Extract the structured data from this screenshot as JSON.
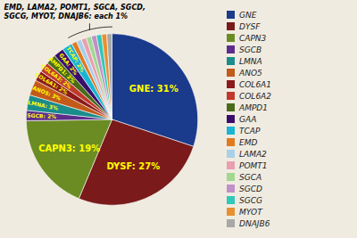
{
  "chart_data": {
    "type": "pie",
    "categories": [
      "GNE",
      "DYSF",
      "CAPN3",
      "SGCB",
      "LMNA",
      "ANO5",
      "COL6A1",
      "COL6A2",
      "AMPD1",
      "GAA",
      "TCAP",
      "EMD",
      "LAMA2",
      "POMT1",
      "SGCA",
      "SGCD",
      "SGCG",
      "MYOT",
      "DNAJB6"
    ],
    "values": [
      31,
      27,
      19,
      2,
      3,
      3,
      2,
      2,
      2,
      2,
      2,
      1,
      1,
      1,
      1,
      1,
      1,
      1,
      1
    ],
    "colors": [
      "#1a3a8c",
      "#7a1a1a",
      "#6b8c23",
      "#5c2d8c",
      "#1a8c8c",
      "#c25a1a",
      "#8c1a1a",
      "#c0392b",
      "#4a6b1a",
      "#3b0d6b",
      "#1ab5d4",
      "#e07b20",
      "#a8d0e8",
      "#e8a0b0",
      "#a0d890",
      "#c090c8",
      "#30c8b8",
      "#e89030",
      "#a8a8a8"
    ],
    "data_labels": true,
    "value_labels": [
      "GNE: 31%",
      "DYSF: 27%",
      "CAPN3: 19%",
      "SGCB: 2%",
      "LMNA: 3%",
      "ANO5: 3%",
      "COL6A1: 2%",
      "COL6A2: 2%",
      "AMPD1: 2%",
      "GAA: 2%",
      "TCAP: 2%",
      null,
      null,
      null,
      null,
      null,
      null,
      null,
      null
    ],
    "annotation": "EMD, LAMA2, POMT1, SGCA, SGCD,\nSGCG, MYOT, DNAJB6: each 1%",
    "legend": "right"
  }
}
